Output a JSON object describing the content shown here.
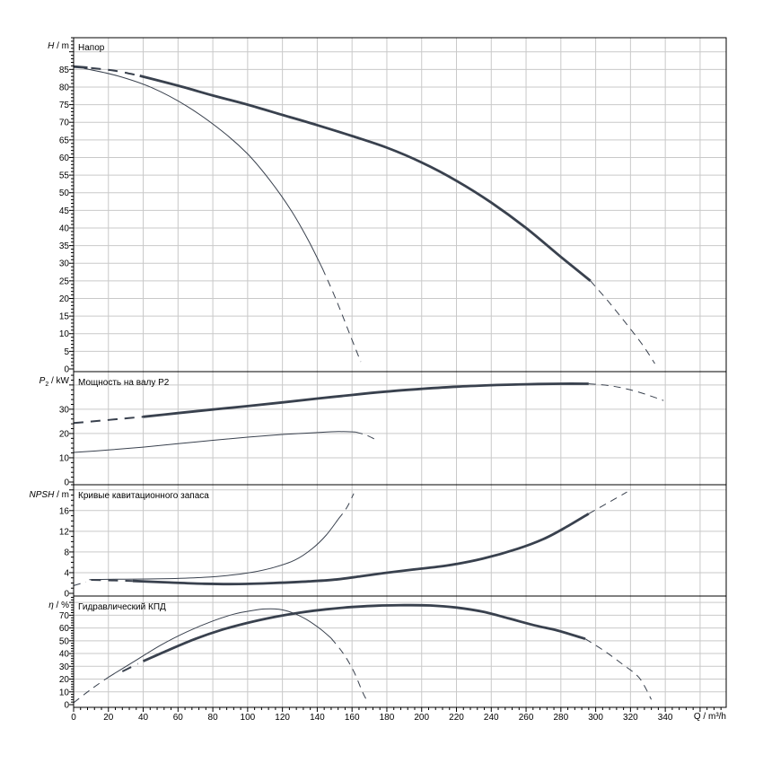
{
  "figure": {
    "bg_color": "#ffffff",
    "frame_color": "#000000",
    "grid_color": "#c9c9c9",
    "curve_color": "#39414e",
    "x_axis": {
      "label": "Q / m³/h",
      "ticks": [
        0,
        20,
        40,
        60,
        80,
        100,
        120,
        140,
        160,
        180,
        200,
        220,
        240,
        260,
        280,
        300,
        320,
        340
      ],
      "grid_step": 20,
      "minor_step": 4,
      "xlim": [
        0,
        375
      ]
    }
  },
  "chart_data": [
    {
      "type": "line",
      "title": "Напор",
      "ylabel": {
        "sym": "H",
        "sub": "",
        "unit": " / m"
      },
      "ylabel_text": "H / m",
      "ylim": [
        0,
        94
      ],
      "yticks": [
        0,
        5,
        10,
        15,
        20,
        25,
        30,
        35,
        40,
        45,
        50,
        55,
        60,
        65,
        70,
        75,
        80,
        85
      ],
      "y_major_step": 5,
      "y_minor_step": 1,
      "gridlines": [
        5,
        10,
        15,
        20,
        25,
        30,
        35,
        40,
        45,
        50,
        55,
        60,
        65,
        70,
        75,
        80,
        85,
        90
      ],
      "series": [
        {
          "name": "secondary-curve",
          "segments": [
            {
              "style": "solid",
              "weight": "thin",
              "points": [
                [
                  6,
                  85.3
                ],
                [
                  25,
                  83.2
                ],
                [
                  45,
                  79.8
                ],
                [
                  65,
                  74.6
                ],
                [
                  85,
                  67.6
                ],
                [
                  100,
                  61
                ],
                [
                  113,
                  53.4
                ],
                [
                  125,
                  45
                ],
                [
                  135,
                  36.4
                ],
                [
                  143,
                  28.5
                ]
              ]
            },
            {
              "style": "dashed",
              "weight": "thin",
              "points": [
                [
                  143,
                  28.5
                ],
                [
                  151,
                  19.5
                ],
                [
                  159,
                  9.5
                ],
                [
                  165,
                  2
                ]
              ]
            }
          ]
        },
        {
          "name": "duty-curve",
          "segments": [
            {
              "style": "solid",
              "weight": "thick",
              "points": [
                [
                  0,
                  85.8
                ],
                [
                  8,
                  85.5
                ]
              ]
            },
            {
              "style": "dashed",
              "weight": "medium",
              "points": [
                [
                  10,
                  85.4
                ],
                [
                  24,
                  84.6
                ],
                [
                  38,
                  83.2
                ]
              ]
            },
            {
              "style": "solid",
              "weight": "thick",
              "points": [
                [
                  38,
                  83.2
                ],
                [
                  60,
                  80.4
                ],
                [
                  80,
                  77.6
                ],
                [
                  100,
                  75
                ],
                [
                  120,
                  72.1
                ],
                [
                  140,
                  69.2
                ],
                [
                  160,
                  66.1
                ],
                [
                  180,
                  62.8
                ],
                [
                  200,
                  58.6
                ],
                [
                  220,
                  53.4
                ],
                [
                  240,
                  47.2
                ],
                [
                  260,
                  40
                ],
                [
                  280,
                  31.8
                ],
                [
                  297,
                  25
                ]
              ]
            },
            {
              "style": "dashed",
              "weight": "thin",
              "points": [
                [
                  297,
                  25
                ],
                [
                  307,
                  19.3
                ],
                [
                  317,
                  13.2
                ],
                [
                  327,
                  6.8
                ],
                [
                  334,
                  1.5
                ]
              ]
            }
          ]
        }
      ]
    },
    {
      "type": "line",
      "title": "Мощность на валу P2",
      "ylabel": {
        "sym": "P",
        "sub": "2",
        "unit": " / kW"
      },
      "ylabel_text": "P2 / kW",
      "ylim": [
        0,
        45.5
      ],
      "yticks": [
        0,
        10,
        20,
        30
      ],
      "y_major_step": 10,
      "y_minor_step": 2,
      "gridlines": [
        10,
        20,
        30,
        40
      ],
      "series": [
        {
          "name": "secondary-curve",
          "segments": [
            {
              "style": "solid",
              "weight": "thin",
              "points": [
                [
                  0,
                  12.2
                ],
                [
                  20,
                  13.2
                ],
                [
                  40,
                  14.4
                ],
                [
                  60,
                  15.8
                ],
                [
                  80,
                  17.2
                ],
                [
                  100,
                  18.5
                ],
                [
                  120,
                  19.6
                ],
                [
                  140,
                  20.4
                ],
                [
                  152,
                  20.8
                ],
                [
                  162,
                  20.6
                ]
              ]
            },
            {
              "style": "dashed",
              "weight": "thin",
              "points": [
                [
                  162,
                  20.6
                ],
                [
                  168,
                  19.4
                ],
                [
                  174,
                  17.3
                ]
              ]
            }
          ]
        },
        {
          "name": "duty-curve",
          "segments": [
            {
              "style": "dashed",
              "weight": "medium",
              "points": [
                [
                  0,
                  24.3
                ],
                [
                  14,
                  25.2
                ],
                [
                  28,
                  26.1
                ],
                [
                  40,
                  26.9
                ]
              ]
            },
            {
              "style": "solid",
              "weight": "thick",
              "points": [
                [
                  40,
                  26.9
                ],
                [
                  60,
                  28.4
                ],
                [
                  80,
                  29.9
                ],
                [
                  100,
                  31.3
                ],
                [
                  120,
                  32.8
                ],
                [
                  140,
                  34.4
                ],
                [
                  160,
                  35.9
                ],
                [
                  180,
                  37.3
                ],
                [
                  200,
                  38.4
                ],
                [
                  220,
                  39.3
                ],
                [
                  240,
                  39.9
                ],
                [
                  260,
                  40.3
                ],
                [
                  280,
                  40.5
                ],
                [
                  296,
                  40.5
                ]
              ]
            },
            {
              "style": "dashed",
              "weight": "thin",
              "points": [
                [
                  296,
                  40.5
                ],
                [
                  310,
                  39.5
                ],
                [
                  324,
                  37.2
                ],
                [
                  339,
                  33.6
                ]
              ]
            }
          ]
        }
      ]
    },
    {
      "type": "line",
      "title": "Кривые кавитационного запаса",
      "ylabel": {
        "sym": "NPSH",
        "sub": "",
        "unit": " / m"
      },
      "ylabel_text": "NPSH / m",
      "ylim": [
        0,
        21
      ],
      "yticks": [
        0,
        4,
        8,
        12,
        16
      ],
      "y_major_step": 4,
      "y_minor_step": 1,
      "gridlines": [
        4,
        8,
        12,
        16,
        20
      ],
      "series": [
        {
          "name": "secondary-curve",
          "segments": [
            {
              "style": "dashed",
              "weight": "thin",
              "points": [
                [
                  0,
                  1.5
                ],
                [
                  7,
                  2.2
                ]
              ]
            },
            {
              "style": "solid",
              "weight": "thin",
              "points": [
                [
                  9,
                  2.65
                ],
                [
                  30,
                  2.75
                ],
                [
                  55,
                  2.85
                ],
                [
                  75,
                  3.1
                ],
                [
                  90,
                  3.5
                ],
                [
                  103,
                  4.1
                ],
                [
                  115,
                  5.0
                ],
                [
                  127,
                  6.4
                ],
                [
                  137,
                  8.6
                ],
                [
                  145,
                  11.2
                ],
                [
                  152,
                  14.3
                ]
              ]
            },
            {
              "style": "dashed",
              "weight": "thin",
              "points": [
                [
                  152,
                  14.3
                ],
                [
                  157,
                  16.6
                ],
                [
                  161,
                  19.3
                ]
              ]
            }
          ]
        },
        {
          "name": "duty-curve",
          "segments": [
            {
              "style": "dashed",
              "weight": "medium",
              "points": [
                [
                  10,
                  2.6
                ],
                [
                  22,
                  2.5
                ],
                [
                  34,
                  2.4
                ]
              ]
            },
            {
              "style": "solid",
              "weight": "thick",
              "points": [
                [
                  34,
                  2.4
                ],
                [
                  55,
                  2.1
                ],
                [
                  75,
                  1.85
                ],
                [
                  95,
                  1.8
                ],
                [
                  115,
                  2.0
                ],
                [
                  135,
                  2.3
                ],
                [
                  150,
                  2.65
                ],
                [
                  165,
                  3.3
                ],
                [
                  178,
                  3.9
                ],
                [
                  195,
                  4.6
                ],
                [
                  215,
                  5.4
                ],
                [
                  235,
                  6.7
                ],
                [
                  255,
                  8.6
                ],
                [
                  270,
                  10.5
                ],
                [
                  283,
                  12.8
                ],
                [
                  296,
                  15.4
                ]
              ]
            },
            {
              "style": "dashed",
              "weight": "thin",
              "points": [
                [
                  296,
                  15.4
                ],
                [
                  306,
                  17.3
                ],
                [
                  318,
                  19.6
                ]
              ]
            }
          ]
        }
      ]
    },
    {
      "type": "line",
      "title": "Гидравлический КПД",
      "ylabel": {
        "sym": "η",
        "sub": "",
        "unit": " / %"
      },
      "ylabel_text": "η / %",
      "ylim": [
        0,
        85
      ],
      "yticks": [
        0,
        10,
        20,
        30,
        40,
        50,
        60,
        70
      ],
      "y_major_step": 10,
      "y_minor_step": 2,
      "gridlines": [
        10,
        20,
        30,
        40,
        50,
        60,
        70,
        80
      ],
      "series": [
        {
          "name": "secondary-curve",
          "segments": [
            {
              "style": "dashed",
              "weight": "thin",
              "points": [
                [
                  0,
                  1.5
                ],
                [
                  10,
                  12
                ],
                [
                  20,
                  21.5
                ]
              ]
            },
            {
              "style": "solid",
              "weight": "thin",
              "points": [
                [
                  20,
                  21.5
                ],
                [
                  35,
                  34
                ],
                [
                  50,
                  46.5
                ],
                [
                  65,
                  57
                ],
                [
                  80,
                  65.5
                ],
                [
                  92,
                  70.8
                ],
                [
                  102,
                  73.5
                ],
                [
                  110,
                  74.9
                ],
                [
                  118,
                  74.6
                ],
                [
                  126,
                  71.8
                ],
                [
                  134,
                  66.5
                ],
                [
                  142,
                  59
                ],
                [
                  148,
                  52
                ]
              ]
            },
            {
              "style": "dashed",
              "weight": "thin",
              "points": [
                [
                  148,
                  52
                ],
                [
                  155,
                  40
                ],
                [
                  161,
                  26
                ],
                [
                  166,
                  10
                ],
                [
                  169,
                  2
                ]
              ]
            }
          ]
        },
        {
          "name": "duty-curve",
          "segments": [
            {
              "style": "dashed",
              "weight": "medium",
              "points": [
                [
                  28,
                  26
                ],
                [
                  37,
                  32
                ]
              ]
            },
            {
              "style": "solid",
              "weight": "thick",
              "points": [
                [
                  40,
                  34
                ],
                [
                  55,
                  43
                ],
                [
                  70,
                  51.5
                ],
                [
                  85,
                  58.5
                ],
                [
                  100,
                  64
                ],
                [
                  115,
                  68.5
                ],
                [
                  130,
                  72
                ],
                [
                  145,
                  74.6
                ],
                [
                  160,
                  76.4
                ],
                [
                  175,
                  77.5
                ],
                [
                  190,
                  77.8
                ],
                [
                  205,
                  77.6
                ],
                [
                  220,
                  76
                ],
                [
                  235,
                  72.8
                ],
                [
                  250,
                  67.5
                ],
                [
                  265,
                  62
                ],
                [
                  278,
                  58
                ],
                [
                  294,
                  51.5
                ]
              ]
            },
            {
              "style": "dashed",
              "weight": "thin",
              "points": [
                [
                  294,
                  51.5
                ],
                [
                  305,
                  42
                ],
                [
                  315,
                  32
                ],
                [
                  325,
                  21
                ],
                [
                  332,
                  4
                ]
              ]
            }
          ]
        }
      ]
    }
  ]
}
